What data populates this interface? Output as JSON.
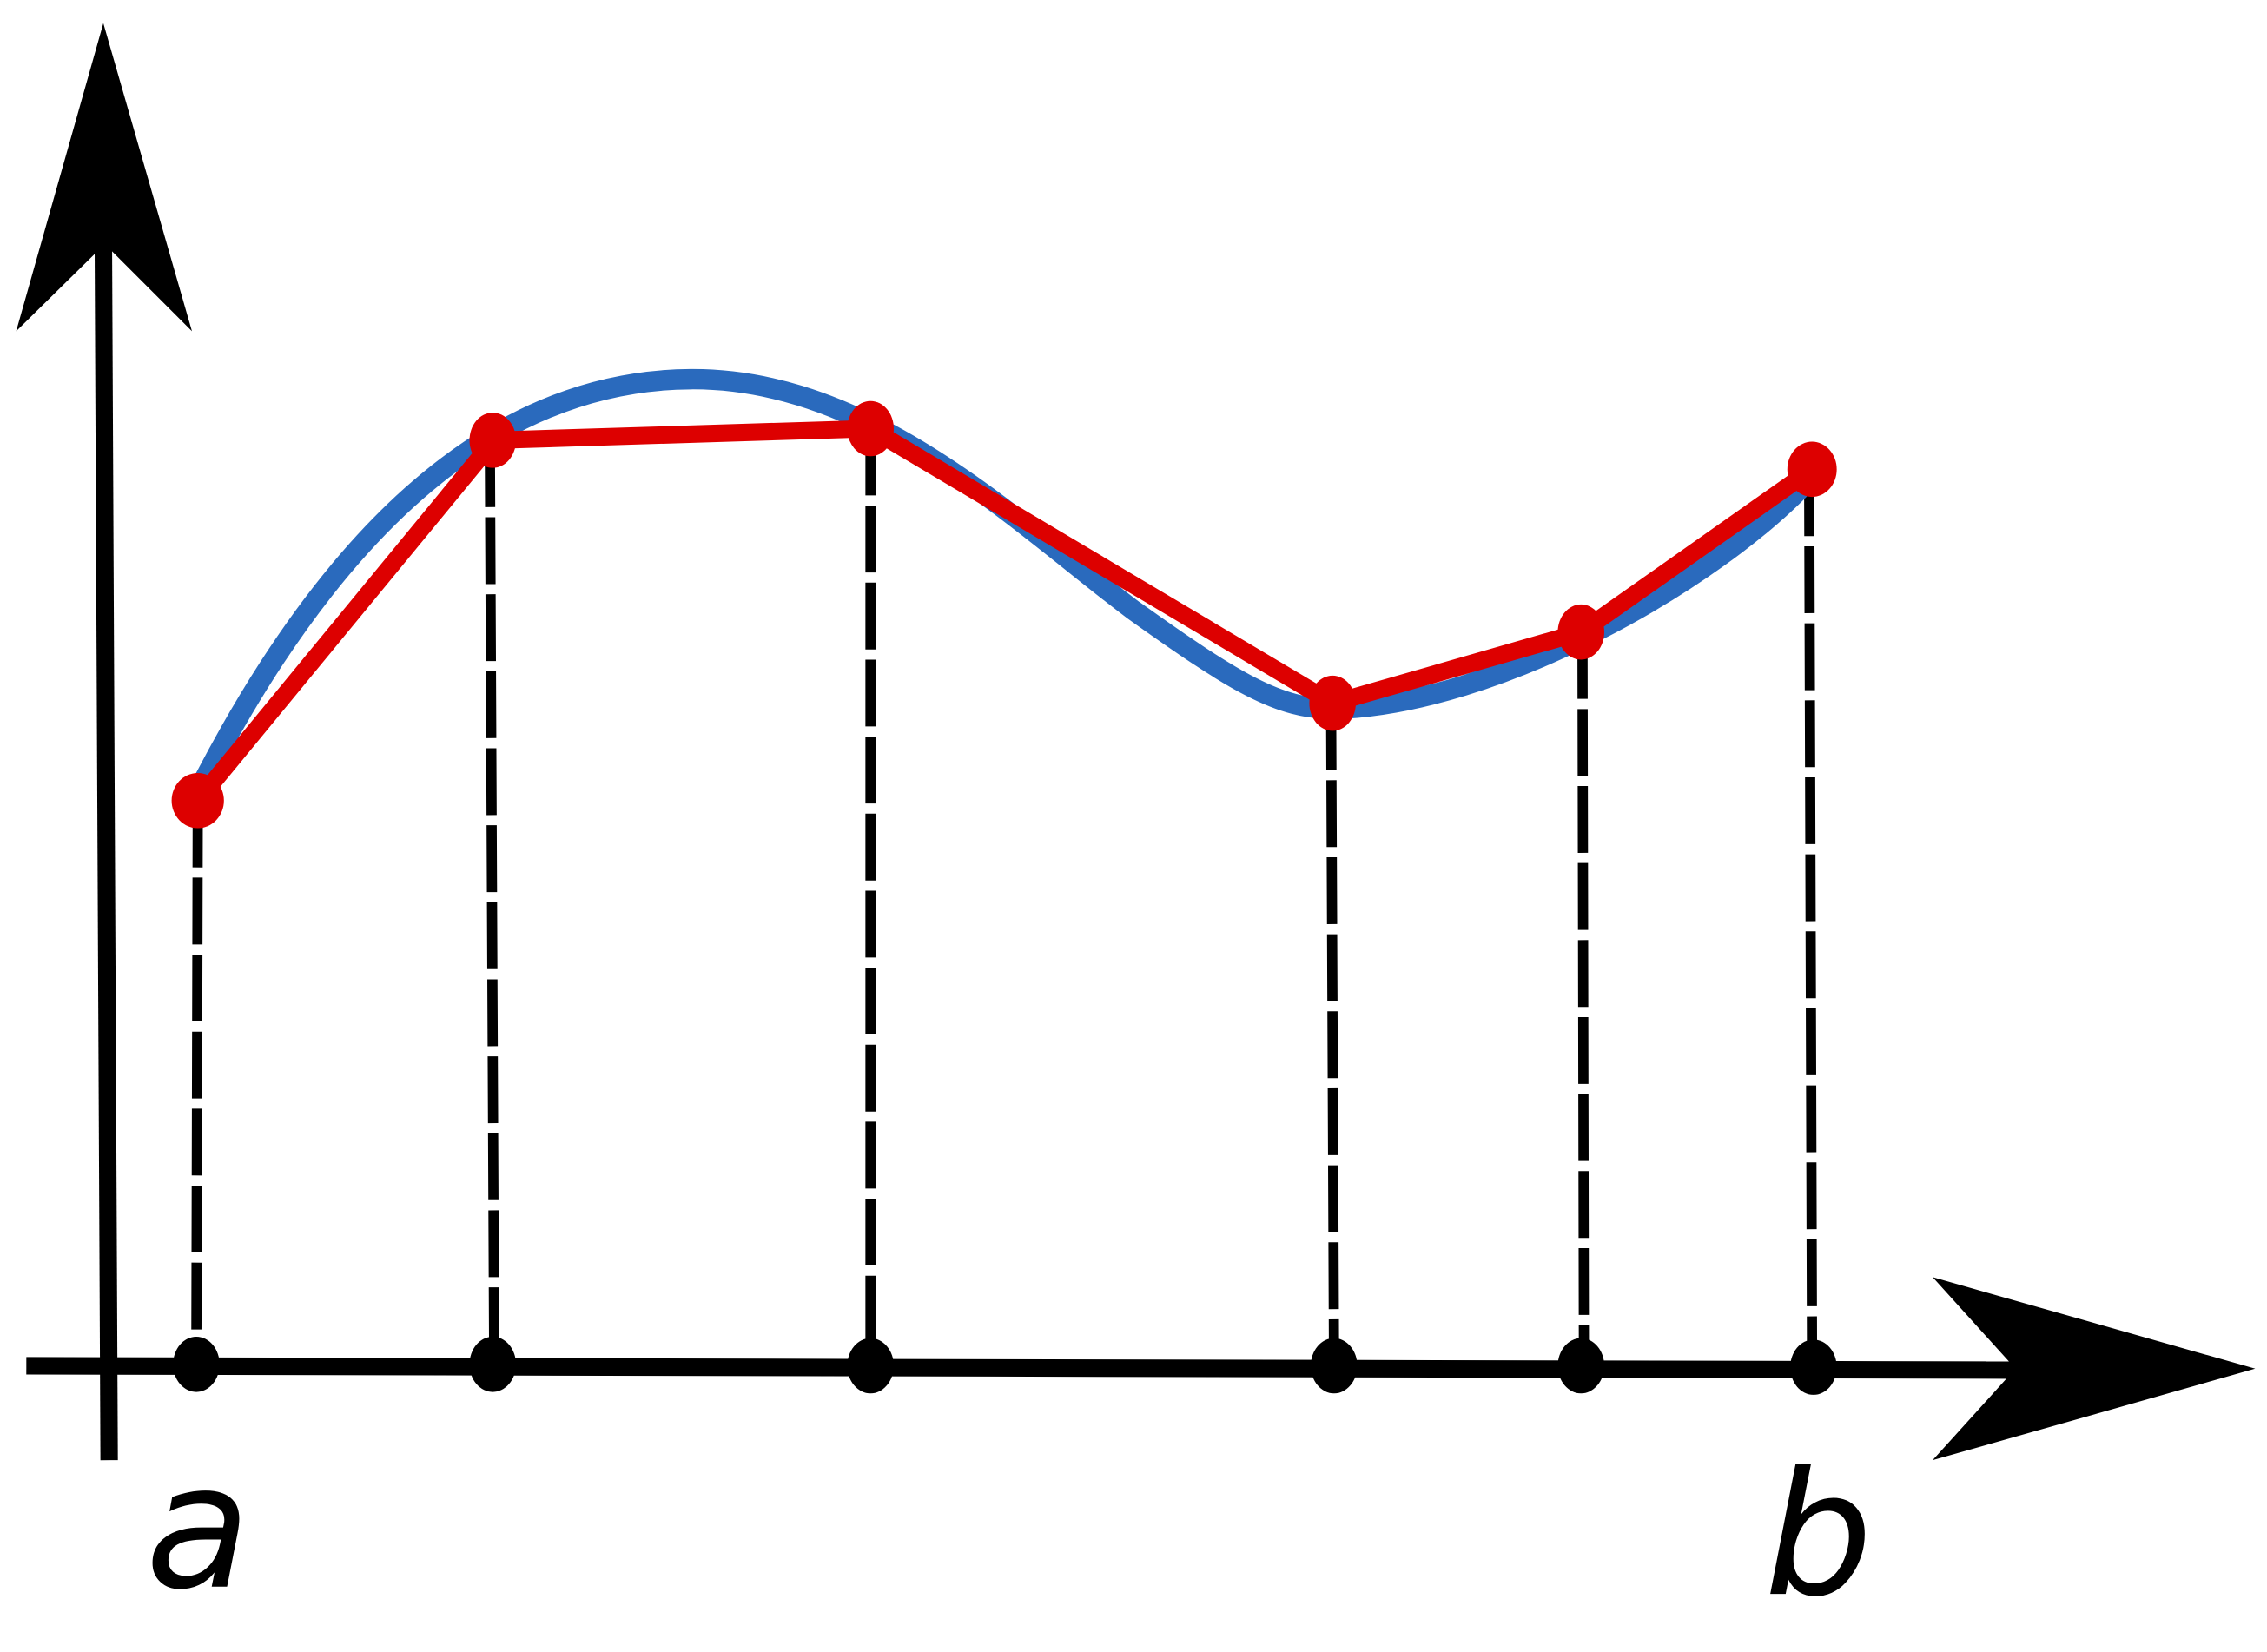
{
  "diagram": {
    "x_start_label": "a",
    "x_end_label": "b",
    "colors": {
      "function_curve": "#2a6abd",
      "piecewise_linear": "#dd0000",
      "axes": "#000000"
    }
  }
}
